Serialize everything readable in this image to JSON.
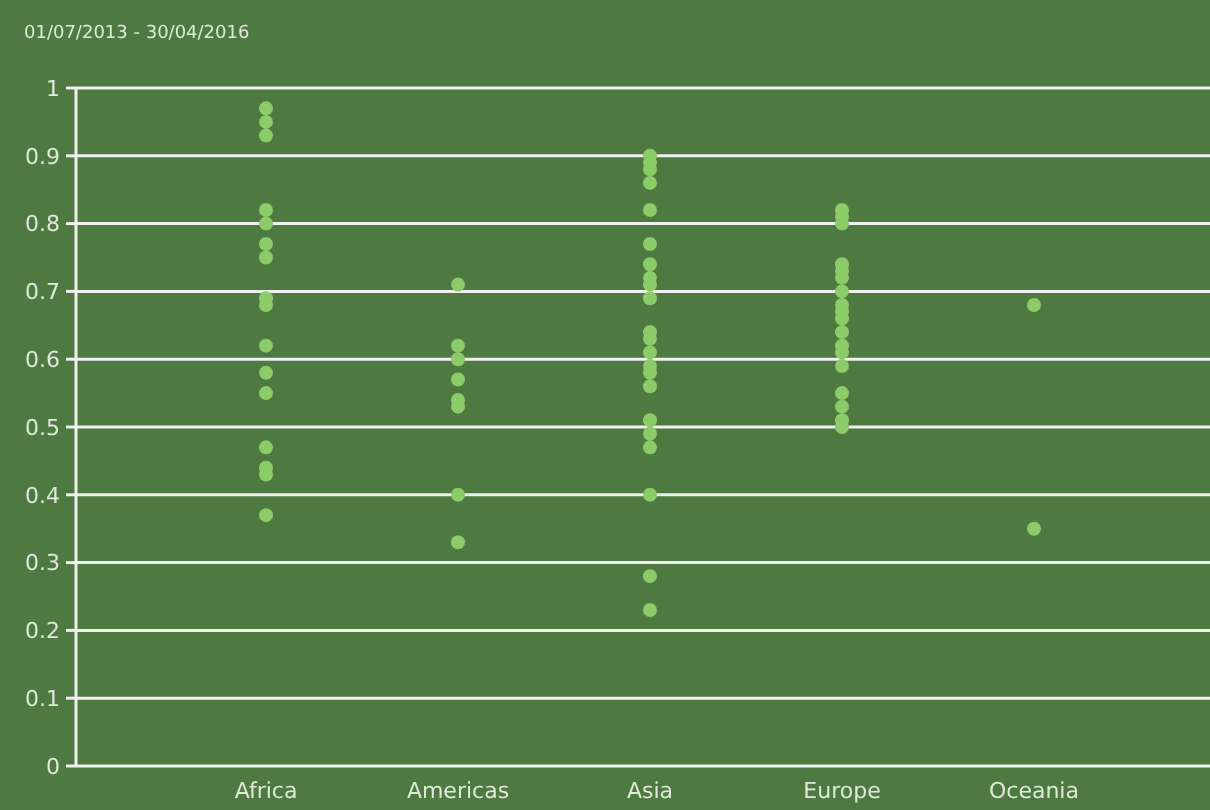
{
  "chart_data": {
    "type": "scatter",
    "title": "01/07/2013 - 30/04/2016",
    "categories": [
      "Africa",
      "Americas",
      "Asia",
      "Europe",
      "Oceania"
    ],
    "series": [
      {
        "color": "#8ccc68",
        "x": [
          "Africa",
          "Africa",
          "Africa",
          "Africa",
          "Africa",
          "Africa",
          "Africa",
          "Africa",
          "Africa",
          "Africa",
          "Africa",
          "Africa",
          "Africa",
          "Africa",
          "Africa",
          "Africa",
          "Americas",
          "Americas",
          "Americas",
          "Americas",
          "Americas",
          "Americas",
          "Americas",
          "Americas",
          "Asia",
          "Asia",
          "Asia",
          "Asia",
          "Asia",
          "Asia",
          "Asia",
          "Asia",
          "Asia",
          "Asia",
          "Asia",
          "Asia",
          "Asia",
          "Asia",
          "Asia",
          "Asia",
          "Asia",
          "Asia",
          "Asia",
          "Asia",
          "Asia",
          "Asia",
          "Europe",
          "Europe",
          "Europe",
          "Europe",
          "Europe",
          "Europe",
          "Europe",
          "Europe",
          "Europe",
          "Europe",
          "Europe",
          "Europe",
          "Europe",
          "Europe",
          "Europe",
          "Europe",
          "Europe",
          "Europe",
          "Oceania",
          "Oceania"
        ],
        "values": [
          0.97,
          0.95,
          0.93,
          0.82,
          0.8,
          0.77,
          0.75,
          0.69,
          0.68,
          0.62,
          0.58,
          0.55,
          0.47,
          0.44,
          0.43,
          0.37,
          0.71,
          0.62,
          0.6,
          0.57,
          0.54,
          0.53,
          0.4,
          0.33,
          0.9,
          0.89,
          0.88,
          0.86,
          0.82,
          0.77,
          0.74,
          0.72,
          0.71,
          0.69,
          0.64,
          0.63,
          0.61,
          0.59,
          0.58,
          0.56,
          0.51,
          0.49,
          0.47,
          0.4,
          0.28,
          0.23,
          0.82,
          0.81,
          0.8,
          0.74,
          0.73,
          0.72,
          0.7,
          0.68,
          0.67,
          0.66,
          0.64,
          0.62,
          0.61,
          0.59,
          0.55,
          0.53,
          0.51,
          0.5,
          0.68,
          0.35
        ]
      }
    ],
    "ylim": [
      0,
      1
    ],
    "yticks": [
      0,
      0.1,
      0.2,
      0.3,
      0.4,
      0.5,
      0.6,
      0.7,
      0.8,
      0.9,
      1
    ],
    "grid": "y",
    "marker": "circle"
  }
}
